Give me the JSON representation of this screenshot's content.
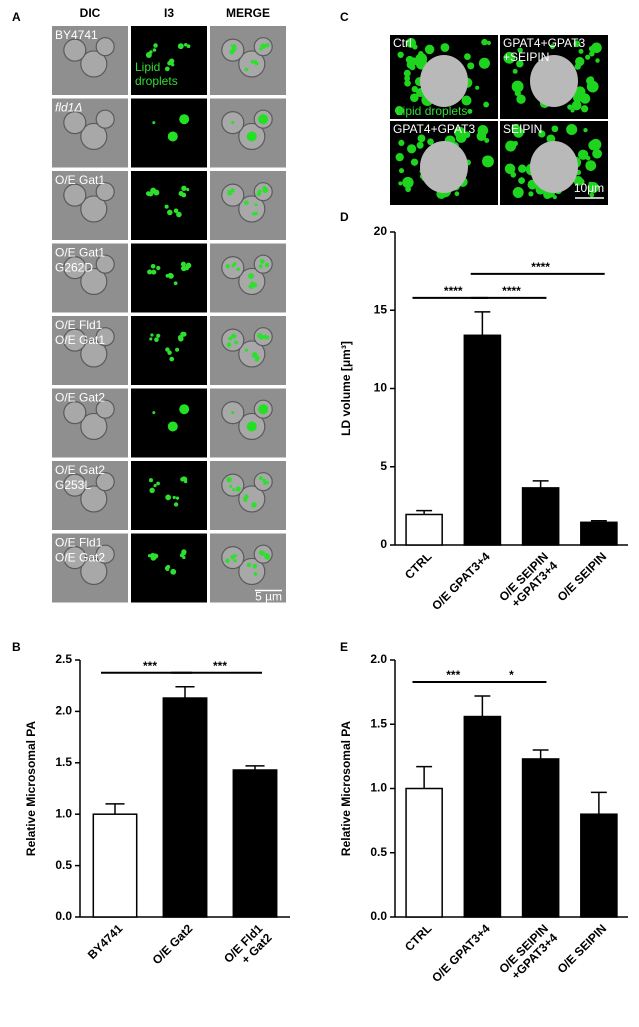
{
  "figure": {
    "panel_a": {
      "label": "A",
      "columns": [
        "DIC",
        "I3",
        "MERGE"
      ],
      "rows": [
        [
          "BY4741"
        ],
        [
          "fld1Δ"
        ],
        [
          "O/E Gat1"
        ],
        [
          "O/E Gat1",
          "G262D"
        ],
        [
          "O/E Fld1",
          "O/E Gat1"
        ],
        [
          "O/E Gat2"
        ],
        [
          "O/E Gat2",
          "G253L"
        ],
        [
          "O/E Fld1",
          "O/E Gat2"
        ]
      ],
      "annotation": [
        "Lipid",
        "droplets"
      ],
      "scale_bar": "5 µm"
    },
    "panel_c": {
      "label": "C",
      "images": [
        [
          "Ctrl"
        ],
        [
          "GPAT4+GPAT3",
          "+SEIPIN"
        ],
        [
          "GPAT4+GPAT3"
        ],
        [
          "SEIPIN"
        ]
      ],
      "annotation": "Lipid droplets",
      "scale_bar": "10μm"
    }
  },
  "chart_data": [
    {
      "type": "bar",
      "label": "B",
      "y_label": "Relative Microsomal PA",
      "categories": [
        [
          "BY4741"
        ],
        [
          "O/E Gat2"
        ],
        [
          "O/E Fld1",
          "+ Gat2"
        ]
      ],
      "values": [
        1.0,
        2.13,
        1.43
      ],
      "errors": [
        0.1,
        0.11,
        0.04
      ],
      "colors": [
        "#ffffff",
        "#000000",
        "#000000"
      ],
      "ylim": [
        0,
        2.5
      ],
      "yticks": [
        {
          "value": 0,
          "label": "0.0"
        },
        0.5,
        {
          "value": 1,
          "label": "1.0"
        },
        1.5,
        {
          "value": 2,
          "label": "2.0"
        },
        2.5
      ],
      "annotations": [
        {
          "text": "***",
          "between": [
            [
              "BY4741"
            ],
            [
              "O/E Gat2"
            ]
          ]
        },
        {
          "text": "***",
          "between": [
            [
              "O/E Gat2"
            ],
            [
              "O/E Fld1",
              "+ Gat2"
            ]
          ]
        }
      ]
    },
    {
      "type": "bar",
      "label": "D",
      "y_label": "LD volume [μm³]",
      "categories": [
        [
          "CTRL"
        ],
        [
          "O/E GPAT3+4"
        ],
        [
          "O/E SEIPIN",
          "+GPAT3+4"
        ],
        [
          "O/E SEIPIN"
        ]
      ],
      "values": [
        1.95,
        13.4,
        3.65,
        1.45
      ],
      "errors": [
        0.25,
        1.5,
        0.45,
        0.1
      ],
      "colors": [
        "#ffffff",
        "#000000",
        "#000000",
        "#000000"
      ],
      "ylim": [
        0,
        20
      ],
      "yticks": [
        0,
        5,
        10,
        15,
        20
      ],
      "annotations": [
        {
          "text": "****",
          "between": [
            [
              "CTRL"
            ],
            [
              "O/E GPAT3+4"
            ]
          ]
        },
        {
          "text": "****",
          "between": [
            [
              "O/E GPAT3+4"
            ],
            [
              "O/E SEIPIN",
              "+GPAT3+4"
            ]
          ]
        },
        {
          "text": "****",
          "between": [
            [
              "O/E GPAT3+4"
            ],
            [
              "O/E SEIPIN"
            ]
          ]
        }
      ]
    },
    {
      "type": "bar",
      "label": "E",
      "y_label": "Relative Microsomal PA",
      "categories": [
        [
          "CTRL"
        ],
        [
          "O/E GPAT3+4"
        ],
        [
          "O/E SEIPIN",
          "+GPAT3+4"
        ],
        [
          "O/E SEIPIN"
        ]
      ],
      "values": [
        1.0,
        1.56,
        1.23,
        0.8
      ],
      "errors": [
        0.17,
        0.16,
        0.07,
        0.17
      ],
      "colors": [
        "#ffffff",
        "#000000",
        "#000000",
        "#000000"
      ],
      "ylim": [
        0,
        2
      ],
      "yticks": [
        {
          "value": 0,
          "label": "0.0"
        },
        0.5,
        {
          "value": 1,
          "label": "1.0"
        },
        1.5,
        {
          "value": 2,
          "label": "2.0"
        }
      ],
      "annotations": [
        {
          "text": "***",
          "between": [
            [
              "CTRL"
            ],
            [
              "O/E GPAT3+4"
            ]
          ]
        },
        {
          "text": "*",
          "between": [
            [
              "O/E GPAT3+4"
            ],
            [
              "O/E SEIPIN",
              "+GPAT3+4"
            ]
          ]
        }
      ]
    }
  ]
}
